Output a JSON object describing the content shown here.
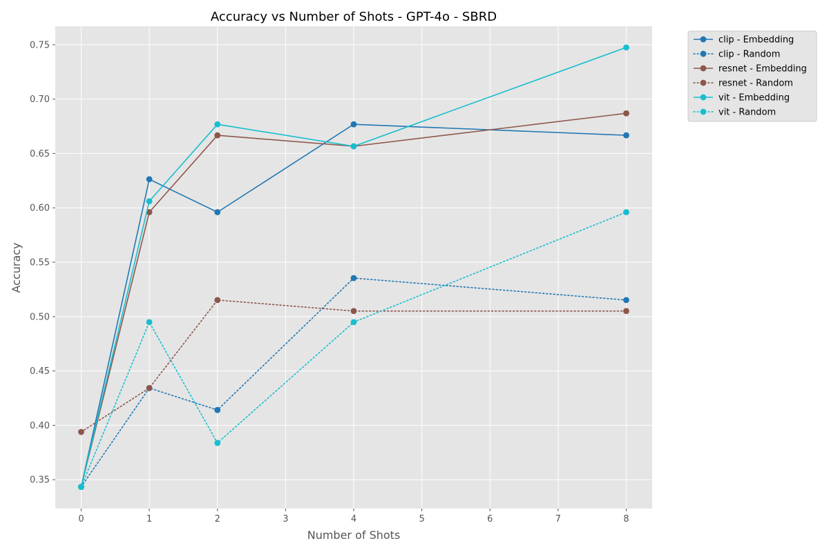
{
  "chart_data": {
    "type": "line",
    "title": "Accuracy vs Number of Shots - GPT-4o - SBRD",
    "xlabel": "Number of Shots",
    "ylabel": "Accuracy",
    "xlim": [
      -0.38,
      8.38
    ],
    "ylim": [
      0.3235,
      0.767
    ],
    "xticks": [
      0,
      1,
      2,
      3,
      4,
      5,
      6,
      7,
      8
    ],
    "yticks": [
      0.35,
      0.4,
      0.45,
      0.5,
      0.55,
      0.6,
      0.65,
      0.7,
      0.75
    ],
    "x": [
      0,
      1,
      2,
      4,
      8
    ],
    "grid": true,
    "legend_position": "outside-top-right",
    "plot_background": "#e5e5e5",
    "series": [
      {
        "name": "clip - Embedding",
        "color": "#1f77b4",
        "style": "solid",
        "values": [
          0.3434,
          0.6263,
          0.596,
          0.6768,
          0.6667
        ]
      },
      {
        "name": "clip - Random",
        "color": "#1f77b4",
        "style": "dotted",
        "values": [
          0.3434,
          0.4343,
          0.4141,
          0.5354,
          0.5152
        ]
      },
      {
        "name": "resnet - Embedding",
        "color": "#8c564b",
        "style": "solid",
        "values": [
          0.3434,
          0.596,
          0.6667,
          0.6566,
          0.6869
        ]
      },
      {
        "name": "resnet - Random",
        "color": "#8c564b",
        "style": "dotted",
        "values": [
          0.3939,
          0.4343,
          0.5152,
          0.5051,
          0.5051
        ]
      },
      {
        "name": "vit - Embedding",
        "color": "#17becf",
        "style": "solid",
        "values": [
          0.3434,
          0.6061,
          0.6768,
          0.6566,
          0.7475
        ]
      },
      {
        "name": "vit - Random",
        "color": "#17becf",
        "style": "dotted",
        "values": [
          0.3434,
          0.4949,
          0.3838,
          0.4949,
          0.596
        ]
      }
    ]
  }
}
